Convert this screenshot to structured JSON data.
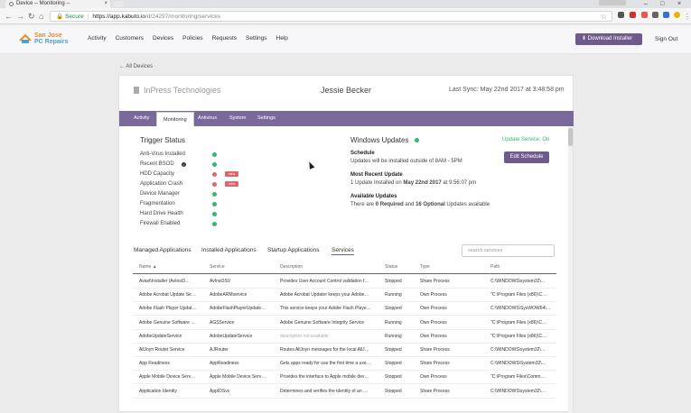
{
  "browser": {
    "tab_title": "Device -- Monitoring --",
    "url_secure": "Secure",
    "url_host": "https://app.kabuto.io",
    "url_path": "/d/24297/monitoring/services"
  },
  "header": {
    "logo_line1": "San Jose",
    "logo_line2": "PC Repairs",
    "nav": [
      "Activity",
      "Customers",
      "Devices",
      "Policies",
      "Requests",
      "Settings",
      "Help"
    ],
    "download_label": "Download Installer",
    "signout_label": "Sign Out"
  },
  "back_link": "All Devices",
  "device": {
    "company": "InPress Technologies",
    "user": "Jessie Becker",
    "last_sync": "Last Sync: May 22nd 2017 at 3:48:58 pm"
  },
  "subtabs": [
    "Activity",
    "Monitoring",
    "Antivirus",
    "System",
    "Settings"
  ],
  "trigger_status": {
    "title": "Trigger Status",
    "items": [
      {
        "label": "Anti-Virus Installed",
        "status": "ok"
      },
      {
        "label": "Recent BSOD",
        "status": "ok"
      },
      {
        "label": "HDD Capacity",
        "status": "alert",
        "action": "view"
      },
      {
        "label": "Application Crash",
        "status": "alert",
        "action": "view"
      },
      {
        "label": "Device Manager",
        "status": "ok"
      },
      {
        "label": "Fragmentation",
        "status": "ok"
      },
      {
        "label": "Hard Drive Health",
        "status": "ok"
      },
      {
        "label": "Firewall Enabled",
        "status": "ok"
      }
    ]
  },
  "windows_updates": {
    "title": "Windows Updates",
    "service_status": "Update Service: On",
    "schedule_label": "Schedule",
    "schedule_text": "Updates will be installed outside of 8AM - 5PM",
    "edit_label": "Edit Schedule",
    "recent_label": "Most Recent Update",
    "recent_pre": "1 Update Installed on",
    "recent_date": "May 22nd 2017",
    "recent_time": "at 9:56:07 pm",
    "available_label": "Available Updates",
    "available_pre": "There are",
    "available_req": "0 Required",
    "available_mid": "and",
    "available_opt": "16 Optional",
    "available_post": "Updates available"
  },
  "app_tabs": [
    "Managed Applications",
    "Installed Applications",
    "Startup Applications",
    "Services"
  ],
  "search_placeholder": "search services",
  "table": {
    "headers": [
      "Name",
      "Service",
      "Description",
      "Status",
      "Type",
      "Path"
    ],
    "rows": [
      [
        "Avast\\Installer (AvInst3…",
        "AvInst3SV",
        "Provides User Account Control validation f…",
        "Stopped",
        "Share Process",
        "C:\\WINDOWS\\system32\\…"
      ],
      [
        "Adobe Acrobat Update Se…",
        "AdobeARMservice",
        "Adobe Acrobat Updater keeps your Adobe…",
        "Running",
        "Own Process",
        "\"C:\\Program Files (x86)\\C…"
      ],
      [
        "Adobe Flash Player Updat…",
        "AdobeFlashPlayerUpdate…",
        "This service keeps your Adobe Flash Playe…",
        "Stopped",
        "Own Process",
        "C:\\WINDOWS\\SysWOW64\\…"
      ],
      [
        "Adobe Genuine Software …",
        "AGSService",
        "Adobe Genuine Software Integrity Service",
        "Running",
        "Own Process",
        "\"C:\\Program Files (x86)\\C…"
      ],
      [
        "AdobeUpdateService",
        "AdobeUpdateService",
        "description not available",
        "Running",
        "Own Process",
        "\"C:\\Program Files (x86)\\C…"
      ],
      [
        "AllJoyn Router Service",
        "AJRouter",
        "Routes AllJoyn messages for the local AllJ…",
        "Stopped",
        "Share Process",
        "C:\\WINDOWS\\system32\\…"
      ],
      [
        "App Readiness",
        "AppReadiness",
        "Gets apps ready for use the first time a use…",
        "Stopped",
        "Share Process",
        "C:\\WINDOWS\\System32\\…"
      ],
      [
        "Apple Mobile Device Serv…",
        "Apple Mobile Device Serv…",
        "Provides the interface to Apple mobile dev…",
        "Stopped",
        "Own Process",
        "\"C:\\Program Files\\Comm…"
      ],
      [
        "Application Identity",
        "AppIDSvc",
        "Determines and verifies the identity of an …",
        "Stopped",
        "Share Process",
        "C:\\WINDOWS\\system32\\…"
      ]
    ]
  },
  "colors": {
    "accent": "#6e5a8d",
    "ok": "#2eb872",
    "alert": "#e0646a"
  }
}
